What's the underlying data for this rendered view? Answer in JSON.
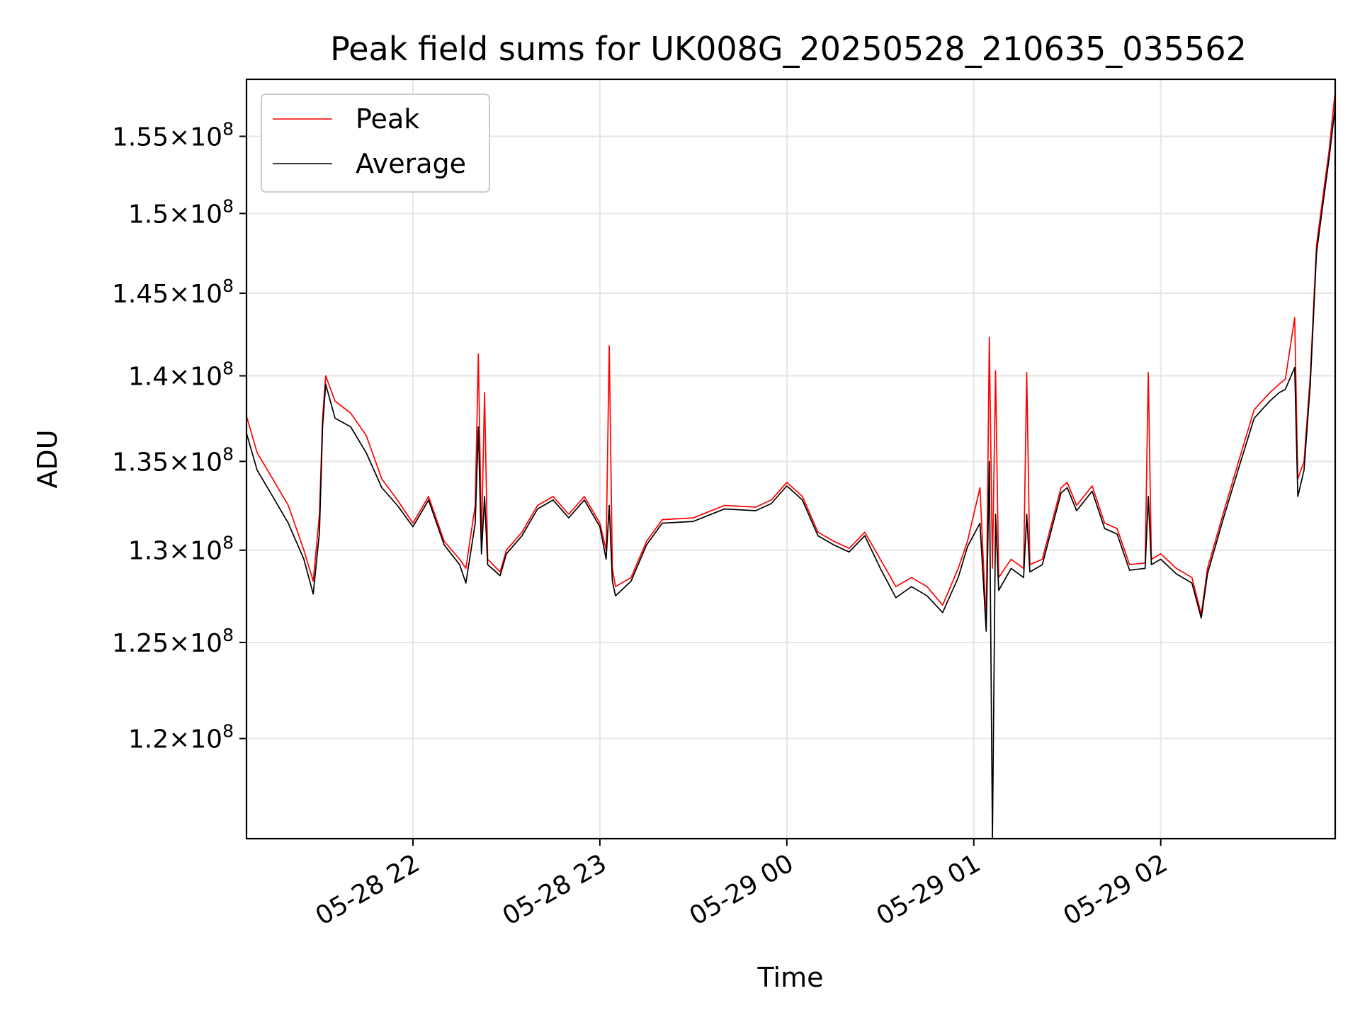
{
  "chart_data": {
    "type": "line",
    "title": "Peak field sums for UK008G_20250528_210635_035562",
    "xlabel": "Time",
    "ylabel": "ADU",
    "y_scale": "log",
    "ylim": [
      115000000,
      158800000
    ],
    "xlim": [
      "2025-05-28 21:06:35",
      "2025-05-29 02:56:00"
    ],
    "grid": true,
    "legend_position": "upper-left",
    "x_ticks": [
      {
        "value": "2025-05-28 22:00",
        "label": "05-28 22"
      },
      {
        "value": "2025-05-28 23:00",
        "label": "05-28 23"
      },
      {
        "value": "2025-05-29 00:00",
        "label": "05-29 00"
      },
      {
        "value": "2025-05-29 01:00",
        "label": "05-29 01"
      },
      {
        "value": "2025-05-29 02:00",
        "label": "05-29 02"
      }
    ],
    "y_ticks": [
      {
        "value": 120000000,
        "mantissa": "1.2",
        "exponent": "8"
      },
      {
        "value": 125000000,
        "mantissa": "1.25",
        "exponent": "8"
      },
      {
        "value": 130000000,
        "mantissa": "1.3",
        "exponent": "8"
      },
      {
        "value": 135000000,
        "mantissa": "1.35",
        "exponent": "8"
      },
      {
        "value": 140000000,
        "mantissa": "1.4",
        "exponent": "8"
      },
      {
        "value": 145000000,
        "mantissa": "1.45",
        "exponent": "8"
      },
      {
        "value": 150000000,
        "mantissa": "1.5",
        "exponent": "8"
      },
      {
        "value": 155000000,
        "mantissa": "1.55",
        "exponent": "8"
      }
    ],
    "series": [
      {
        "name": "Peak",
        "color": "#ff0000",
        "points": [
          [
            "2025-05-28 21:06",
            138000000
          ],
          [
            "2025-05-28 21:10",
            135500000
          ],
          [
            "2025-05-28 21:15",
            134000000
          ],
          [
            "2025-05-28 21:20",
            132500000
          ],
          [
            "2025-05-28 21:25",
            130000000
          ],
          [
            "2025-05-28 21:28",
            128300000
          ],
          [
            "2025-05-28 21:30",
            132000000
          ],
          [
            "2025-05-28 21:31",
            137500000
          ],
          [
            "2025-05-28 21:32",
            140000000
          ],
          [
            "2025-05-28 21:35",
            138500000
          ],
          [
            "2025-05-28 21:40",
            137800000
          ],
          [
            "2025-05-28 21:45",
            136500000
          ],
          [
            "2025-05-28 21:50",
            134000000
          ],
          [
            "2025-05-28 21:55",
            132800000
          ],
          [
            "2025-05-28 22:00",
            131500000
          ],
          [
            "2025-05-28 22:05",
            133000000
          ],
          [
            "2025-05-28 22:10",
            130500000
          ],
          [
            "2025-05-28 22:15",
            129500000
          ],
          [
            "2025-05-28 22:17",
            129000000
          ],
          [
            "2025-05-28 22:20",
            132500000
          ],
          [
            "2025-05-28 22:21",
            141300000
          ],
          [
            "2025-05-28 22:22",
            130500000
          ],
          [
            "2025-05-28 22:23",
            139000000
          ],
          [
            "2025-05-28 22:24",
            129500000
          ],
          [
            "2025-05-28 22:28",
            128800000
          ],
          [
            "2025-05-28 22:30",
            130000000
          ],
          [
            "2025-05-28 22:35",
            131000000
          ],
          [
            "2025-05-28 22:40",
            132500000
          ],
          [
            "2025-05-28 22:45",
            133000000
          ],
          [
            "2025-05-28 22:50",
            132000000
          ],
          [
            "2025-05-28 22:55",
            133000000
          ],
          [
            "2025-05-28 23:00",
            131500000
          ],
          [
            "2025-05-28 23:02",
            130000000
          ],
          [
            "2025-05-28 23:03",
            141800000
          ],
          [
            "2025-05-28 23:04",
            129000000
          ],
          [
            "2025-05-28 23:05",
            128000000
          ],
          [
            "2025-05-28 23:10",
            128500000
          ],
          [
            "2025-05-28 23:15",
            130500000
          ],
          [
            "2025-05-28 23:20",
            131700000
          ],
          [
            "2025-05-28 23:30",
            131800000
          ],
          [
            "2025-05-28 23:40",
            132500000
          ],
          [
            "2025-05-28 23:50",
            132400000
          ],
          [
            "2025-05-28 23:55",
            132800000
          ],
          [
            "2025-05-29 00:00",
            133800000
          ],
          [
            "2025-05-29 00:05",
            133000000
          ],
          [
            "2025-05-29 00:10",
            131000000
          ],
          [
            "2025-05-29 00:15",
            130500000
          ],
          [
            "2025-05-29 00:20",
            130100000
          ],
          [
            "2025-05-29 00:25",
            131000000
          ],
          [
            "2025-05-29 00:30",
            129500000
          ],
          [
            "2025-05-29 00:35",
            128000000
          ],
          [
            "2025-05-29 00:40",
            128500000
          ],
          [
            "2025-05-29 00:45",
            128000000
          ],
          [
            "2025-05-29 00:50",
            127000000
          ],
          [
            "2025-05-29 00:55",
            129000000
          ],
          [
            "2025-05-29 00:58",
            130500000
          ],
          [
            "2025-05-29 01:02",
            133500000
          ],
          [
            "2025-05-29 01:04",
            126000000
          ],
          [
            "2025-05-29 01:05",
            142300000
          ],
          [
            "2025-05-29 01:06",
            129000000
          ],
          [
            "2025-05-29 01:07",
            140300000
          ],
          [
            "2025-05-29 01:08",
            128500000
          ],
          [
            "2025-05-29 01:12",
            129500000
          ],
          [
            "2025-05-29 01:16",
            129000000
          ],
          [
            "2025-05-29 01:17",
            140200000
          ],
          [
            "2025-05-29 01:18",
            129200000
          ],
          [
            "2025-05-29 01:22",
            129500000
          ],
          [
            "2025-05-29 01:28",
            133500000
          ],
          [
            "2025-05-29 01:30",
            133800000
          ],
          [
            "2025-05-29 01:33",
            132500000
          ],
          [
            "2025-05-29 01:38",
            133600000
          ],
          [
            "2025-05-29 01:42",
            131500000
          ],
          [
            "2025-05-29 01:46",
            131200000
          ],
          [
            "2025-05-29 01:50",
            129200000
          ],
          [
            "2025-05-29 01:55",
            129300000
          ],
          [
            "2025-05-29 01:56",
            140200000
          ],
          [
            "2025-05-29 01:57",
            129500000
          ],
          [
            "2025-05-29 02:00",
            129800000
          ],
          [
            "2025-05-29 02:05",
            129000000
          ],
          [
            "2025-05-29 02:10",
            128500000
          ],
          [
            "2025-05-29 02:13",
            126500000
          ],
          [
            "2025-05-29 02:15",
            129000000
          ],
          [
            "2025-05-29 02:20",
            132000000
          ],
          [
            "2025-05-29 02:25",
            135000000
          ],
          [
            "2025-05-29 02:30",
            138000000
          ],
          [
            "2025-05-29 02:35",
            139000000
          ],
          [
            "2025-05-29 02:38",
            139500000
          ],
          [
            "2025-05-29 02:40",
            139800000
          ],
          [
            "2025-05-29 02:43",
            143500000
          ],
          [
            "2025-05-29 02:44",
            134000000
          ],
          [
            "2025-05-29 02:46",
            135000000
          ],
          [
            "2025-05-29 02:48",
            140000000
          ],
          [
            "2025-05-29 02:50",
            148000000
          ],
          [
            "2025-05-29 02:52",
            151000000
          ],
          [
            "2025-05-29 02:54",
            154000000
          ],
          [
            "2025-05-29 02:56",
            158000000
          ]
        ]
      },
      {
        "name": "Average",
        "color": "#000000",
        "points": [
          [
            "2025-05-28 21:06",
            137000000
          ],
          [
            "2025-05-28 21:10",
            134500000
          ],
          [
            "2025-05-28 21:15",
            133000000
          ],
          [
            "2025-05-28 21:20",
            131500000
          ],
          [
            "2025-05-28 21:25",
            129500000
          ],
          [
            "2025-05-28 21:28",
            127600000
          ],
          [
            "2025-05-28 21:30",
            131000000
          ],
          [
            "2025-05-28 21:31",
            137000000
          ],
          [
            "2025-05-28 21:32",
            139500000
          ],
          [
            "2025-05-28 21:35",
            137500000
          ],
          [
            "2025-05-28 21:40",
            137000000
          ],
          [
            "2025-05-28 21:45",
            135500000
          ],
          [
            "2025-05-28 21:50",
            133500000
          ],
          [
            "2025-05-28 21:55",
            132500000
          ],
          [
            "2025-05-28 22:00",
            131300000
          ],
          [
            "2025-05-28 22:05",
            132800000
          ],
          [
            "2025-05-28 22:10",
            130300000
          ],
          [
            "2025-05-28 22:15",
            129200000
          ],
          [
            "2025-05-28 22:17",
            128200000
          ],
          [
            "2025-05-28 22:20",
            131500000
          ],
          [
            "2025-05-28 22:21",
            137000000
          ],
          [
            "2025-05-28 22:22",
            129800000
          ],
          [
            "2025-05-28 22:23",
            133000000
          ],
          [
            "2025-05-28 22:24",
            129200000
          ],
          [
            "2025-05-28 22:28",
            128600000
          ],
          [
            "2025-05-28 22:30",
            129800000
          ],
          [
            "2025-05-28 22:35",
            130800000
          ],
          [
            "2025-05-28 22:40",
            132300000
          ],
          [
            "2025-05-28 22:45",
            132800000
          ],
          [
            "2025-05-28 22:50",
            131800000
          ],
          [
            "2025-05-28 22:55",
            132800000
          ],
          [
            "2025-05-28 23:00",
            131300000
          ],
          [
            "2025-05-28 23:02",
            129500000
          ],
          [
            "2025-05-28 23:03",
            132500000
          ],
          [
            "2025-05-28 23:04",
            128300000
          ],
          [
            "2025-05-28 23:05",
            127500000
          ],
          [
            "2025-05-28 23:10",
            128300000
          ],
          [
            "2025-05-28 23:15",
            130300000
          ],
          [
            "2025-05-28 23:20",
            131500000
          ],
          [
            "2025-05-28 23:30",
            131600000
          ],
          [
            "2025-05-28 23:40",
            132300000
          ],
          [
            "2025-05-28 23:50",
            132200000
          ],
          [
            "2025-05-28 23:55",
            132600000
          ],
          [
            "2025-05-29 00:00",
            133600000
          ],
          [
            "2025-05-29 00:05",
            132800000
          ],
          [
            "2025-05-29 00:10",
            130800000
          ],
          [
            "2025-05-29 00:15",
            130300000
          ],
          [
            "2025-05-29 00:20",
            129900000
          ],
          [
            "2025-05-29 00:25",
            130800000
          ],
          [
            "2025-05-29 00:30",
            129000000
          ],
          [
            "2025-05-29 00:35",
            127400000
          ],
          [
            "2025-05-29 00:40",
            128000000
          ],
          [
            "2025-05-29 00:45",
            127500000
          ],
          [
            "2025-05-29 00:50",
            126600000
          ],
          [
            "2025-05-29 00:55",
            128500000
          ],
          [
            "2025-05-29 00:58",
            130200000
          ],
          [
            "2025-05-29 01:02",
            131500000
          ],
          [
            "2025-05-29 01:04",
            125600000
          ],
          [
            "2025-05-29 01:05",
            135000000
          ],
          [
            "2025-05-29 01:06",
            115000000
          ],
          [
            "2025-05-29 01:07",
            132000000
          ],
          [
            "2025-05-29 01:08",
            127800000
          ],
          [
            "2025-05-29 01:12",
            129000000
          ],
          [
            "2025-05-29 01:16",
            128500000
          ],
          [
            "2025-05-29 01:17",
            132000000
          ],
          [
            "2025-05-29 01:18",
            128800000
          ],
          [
            "2025-05-29 01:22",
            129200000
          ],
          [
            "2025-05-29 01:28",
            133200000
          ],
          [
            "2025-05-29 01:30",
            133500000
          ],
          [
            "2025-05-29 01:33",
            132200000
          ],
          [
            "2025-05-29 01:38",
            133300000
          ],
          [
            "2025-05-29 01:42",
            131200000
          ],
          [
            "2025-05-29 01:46",
            130900000
          ],
          [
            "2025-05-29 01:50",
            128900000
          ],
          [
            "2025-05-29 01:55",
            129000000
          ],
          [
            "2025-05-29 01:56",
            133000000
          ],
          [
            "2025-05-29 01:57",
            129200000
          ],
          [
            "2025-05-29 02:00",
            129500000
          ],
          [
            "2025-05-29 02:05",
            128700000
          ],
          [
            "2025-05-29 02:10",
            128200000
          ],
          [
            "2025-05-29 02:13",
            126300000
          ],
          [
            "2025-05-29 02:15",
            128700000
          ],
          [
            "2025-05-29 02:20",
            131700000
          ],
          [
            "2025-05-29 02:25",
            134600000
          ],
          [
            "2025-05-29 02:30",
            137500000
          ],
          [
            "2025-05-29 02:35",
            138500000
          ],
          [
            "2025-05-29 02:38",
            139000000
          ],
          [
            "2025-05-29 02:40",
            139200000
          ],
          [
            "2025-05-29 02:43",
            140500000
          ],
          [
            "2025-05-29 02:44",
            133000000
          ],
          [
            "2025-05-29 02:46",
            134500000
          ],
          [
            "2025-05-29 02:48",
            139500000
          ],
          [
            "2025-05-29 02:50",
            147500000
          ],
          [
            "2025-05-29 02:52",
            150500000
          ],
          [
            "2025-05-29 02:54",
            153500000
          ],
          [
            "2025-05-29 02:56",
            157000000
          ]
        ]
      }
    ]
  }
}
